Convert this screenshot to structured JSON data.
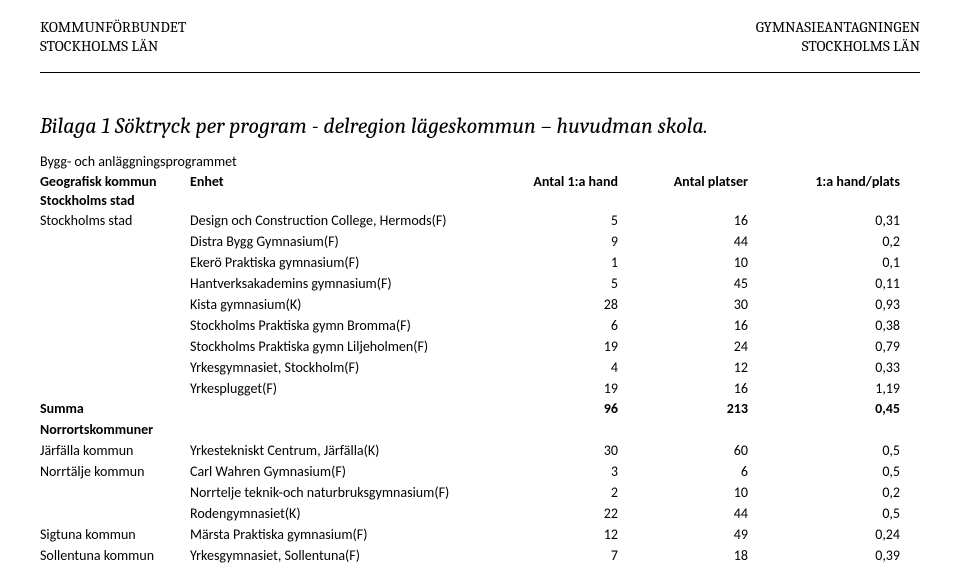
{
  "header": {
    "left": "KOMMUNFÖRBUNDET\nSTOCKHOLMS LÄN",
    "right": "GYMNASIEANTAGNINGEN\nSTOCKHOLMS LÄN"
  },
  "title": "Bilaga 1  Söktryck per program - delregion lägeskommun – huvudman skola.",
  "section": "Bygg- och anläggningsprogrammet",
  "columns": {
    "kommun": "Geografisk kommun",
    "enhet": "Enhet",
    "n1": "Antal 1:a hand",
    "n2": "Antal platser",
    "n3": "1:a hand/plats"
  },
  "groups": [
    {
      "label": "Stockholms stad",
      "rows": [
        {
          "kommun": "Stockholms stad",
          "enhet": "Design och Construction College, Hermods(F)",
          "n1": "5",
          "n2": "16",
          "n3": "0,31"
        },
        {
          "kommun": "",
          "enhet": "Distra Bygg Gymnasium(F)",
          "n1": "9",
          "n2": "44",
          "n3": "0,2"
        },
        {
          "kommun": "",
          "enhet": "Ekerö Praktiska gymnasium(F)",
          "n1": "1",
          "n2": "10",
          "n3": "0,1"
        },
        {
          "kommun": "",
          "enhet": "Hantverksakademins gymnasium(F)",
          "n1": "5",
          "n2": "45",
          "n3": "0,11"
        },
        {
          "kommun": "",
          "enhet": "Kista gymnasium(K)",
          "n1": "28",
          "n2": "30",
          "n3": "0,93"
        },
        {
          "kommun": "",
          "enhet": "Stockholms Praktiska gymn Bromma(F)",
          "n1": "6",
          "n2": "16",
          "n3": "0,38"
        },
        {
          "kommun": "",
          "enhet": "Stockholms Praktiska gymn Liljeholmen(F)",
          "n1": "19",
          "n2": "24",
          "n3": "0,79"
        },
        {
          "kommun": "",
          "enhet": "Yrkesgymnasiet, Stockholm(F)",
          "n1": "4",
          "n2": "12",
          "n3": "0,33"
        },
        {
          "kommun": "",
          "enhet": "Yrkesplugget(F)",
          "n1": "19",
          "n2": "16",
          "n3": "1,19"
        }
      ],
      "summary": {
        "kommun": "Summa",
        "enhet": "",
        "n1": "96",
        "n2": "213",
        "n3": "0,45"
      }
    },
    {
      "label": "Norrortskommuner",
      "rows": [
        {
          "kommun": "Järfälla kommun",
          "enhet": "Yrkestekniskt Centrum, Järfälla(K)",
          "n1": "30",
          "n2": "60",
          "n3": "0,5"
        },
        {
          "kommun": "Norrtälje kommun",
          "enhet": "Carl Wahren Gymnasium(F)",
          "n1": "3",
          "n2": "6",
          "n3": "0,5"
        },
        {
          "kommun": "",
          "enhet": "Norrtelje teknik-och naturbruksgymnasium(F)",
          "n1": "2",
          "n2": "10",
          "n3": "0,2"
        },
        {
          "kommun": "",
          "enhet": "Rodengymnasiet(K)",
          "n1": "22",
          "n2": "44",
          "n3": "0,5"
        },
        {
          "kommun": "Sigtuna kommun",
          "enhet": "Märsta Praktiska gymnasium(F)",
          "n1": "12",
          "n2": "49",
          "n3": "0,24"
        },
        {
          "kommun": "Sollentuna kommun",
          "enhet": "Yrkesgymnasiet, Sollentuna(F)",
          "n1": "7",
          "n2": "18",
          "n3": "0,39"
        }
      ]
    }
  ]
}
